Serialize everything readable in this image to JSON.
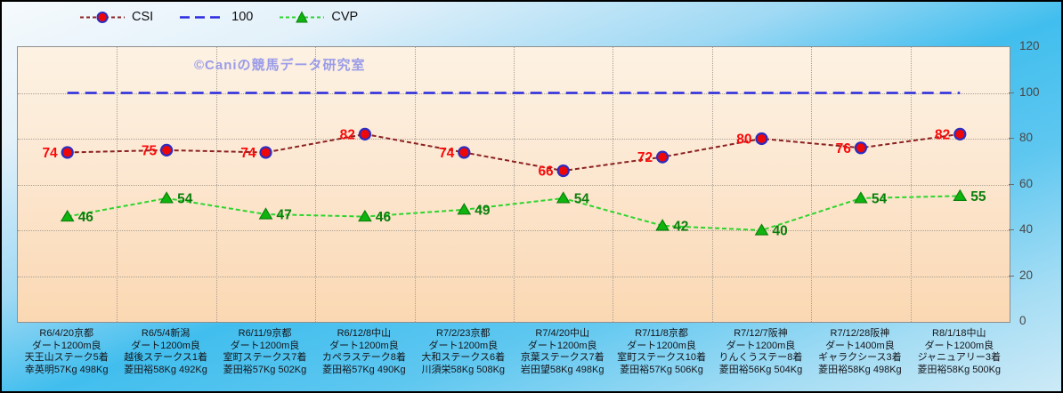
{
  "watermark": "©Caniの競馬データ研究室",
  "chart_data": {
    "type": "line",
    "title": "",
    "grid": true,
    "legend": {
      "position": "top-left",
      "entries": [
        "CSI",
        "100",
        "CVP"
      ]
    },
    "y_axis": {
      "side": "right",
      "min": 0,
      "max": 120,
      "ticks": [
        0,
        20,
        40,
        60,
        80,
        100,
        120
      ]
    },
    "categories": [
      [
        "R6/4/20京都",
        "ダート1200m良",
        "天王山ステーク5着",
        "幸英明57Kg 498Kg"
      ],
      [
        "R6/5/4新潟",
        "ダート1200m良",
        "越後ステークス1着",
        "菱田裕58Kg 492Kg"
      ],
      [
        "R6/11/9京都",
        "ダート1200m良",
        "室町ステークス7着",
        "菱田裕57Kg 502Kg"
      ],
      [
        "R6/12/8中山",
        "ダート1200m良",
        "カペラステーク8着",
        "菱田裕57Kg 490Kg"
      ],
      [
        "R7/2/23京都",
        "ダート1200m良",
        "大和ステークス6着",
        "川須栄58Kg 508Kg"
      ],
      [
        "R7/4/20中山",
        "ダート1200m良",
        "京葉ステークス7着",
        "岩田望58Kg 498Kg"
      ],
      [
        "R7/11/8京都",
        "ダート1200m良",
        "室町ステークス10着",
        "菱田裕57Kg 506Kg"
      ],
      [
        "R7/12/7阪神",
        "ダート1200m良",
        "りんくうステー8着",
        "菱田裕56Kg 504Kg"
      ],
      [
        "R7/12/28阪神",
        "ダート1400m良",
        "ギャラクシース3着",
        "菱田裕58Kg 498Kg"
      ],
      [
        "R8/1/18中山",
        "ダート1200m良",
        "ジャニュアリー3着",
        "菱田裕58Kg 500Kg"
      ]
    ],
    "series": [
      {
        "name": "CSI",
        "values": [
          74,
          75,
          74,
          82,
          74,
          66,
          72,
          80,
          76,
          82
        ],
        "line_color": "#8b2121",
        "dash": "5 3",
        "width": 2,
        "marker": "circle",
        "marker_fill": "#ee0707",
        "marker_edge": "#2d2dc0",
        "label_color": "#fa0a0a",
        "label_side": "left"
      },
      {
        "name": "100",
        "values": [
          100,
          100,
          100,
          100,
          100,
          100,
          100,
          100,
          100,
          100
        ],
        "line_color": "#2a2ae0",
        "dash": "13 7",
        "width": 2.5,
        "marker": "none",
        "label_side": "none"
      },
      {
        "name": "CVP",
        "values": [
          46,
          54,
          47,
          46,
          49,
          54,
          42,
          40,
          54,
          55
        ],
        "line_color": "#2ed42e",
        "dash": "5 3",
        "width": 2,
        "marker": "triangle",
        "marker_fill": "#0fb40f",
        "marker_edge": "#0a820a",
        "label_color": "#0c7e0c",
        "label_side": "right"
      }
    ]
  }
}
